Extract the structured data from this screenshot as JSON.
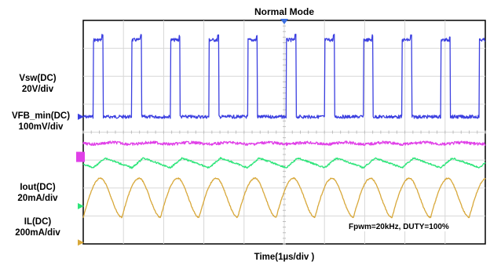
{
  "chart_data": {
    "type": "line",
    "title": "Normal Mode",
    "xlabel": "Time(1µs/div )",
    "x_divisions": 10,
    "y_divisions": 8,
    "grid": true,
    "annotation": "Fpwm=20kHz, DUTY=100%",
    "channel_labels": [
      {
        "name": "Vsw(DC)",
        "scale": "20V/div"
      },
      {
        "name": "VFB_min(DC)",
        "scale": "100mV/div"
      },
      {
        "name": "Iout(DC)",
        "scale": "20mA/div"
      },
      {
        "name": "IL(DC)",
        "scale": "200mA/div"
      }
    ],
    "series": [
      {
        "name": "Vsw(DC)",
        "color": "#3b3fe0",
        "shape": "pulse",
        "period_div": 0.96,
        "high_fraction": 0.25,
        "low_div": 3.45,
        "high_div": 0.7
      },
      {
        "name": "VFB_min(DC)",
        "color": "#e040e8",
        "shape": "flat",
        "level_div": 4.4
      },
      {
        "name": "VFB_min(DC)",
        "color": "#2ee57a",
        "shape": "ripple",
        "level_div": 5.1,
        "ripple_div": 0.35,
        "period_div": 0.96
      },
      {
        "name": "Iout(DC)",
        "color": "#d8a83a",
        "shape": "triangle",
        "min_div": 7.05,
        "max_div": 5.65,
        "period_div": 0.96
      }
    ]
  }
}
